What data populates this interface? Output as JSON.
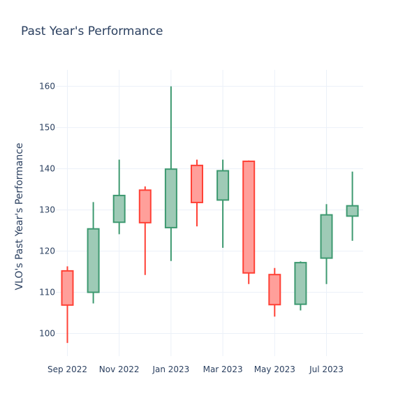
{
  "chart_data": {
    "type": "candlestick",
    "title": "Past Year's Performance",
    "ylabel": "VLO's Past Year's Performance",
    "xlabel": "",
    "ylim": [
      94.5,
      164
    ],
    "y_ticks": [
      100,
      110,
      120,
      130,
      140,
      150,
      160
    ],
    "x_ticks": [
      {
        "label": "Sep 2022",
        "at": "Sep 2022"
      },
      {
        "label": "Nov 2022",
        "at": "Nov 2022"
      },
      {
        "label": "Jan 2023",
        "at": "Jan 2023"
      },
      {
        "label": "Mar 2023",
        "at": "Mar 2023"
      },
      {
        "label": "May 2023",
        "at": "May 2023"
      },
      {
        "label": "Jul 2023",
        "at": "Jul 2023"
      }
    ],
    "grid": true,
    "colors": {
      "increasing": "#3d9970",
      "increasing_fill": "#9ecab6",
      "decreasing": "#ff4136",
      "decreasing_fill": "#ff9f9a"
    },
    "candles": [
      {
        "x": "Sep 2022",
        "open": 115.2,
        "high": 116.3,
        "low": 97.7,
        "close": 106.9
      },
      {
        "x": "Oct 2022",
        "open": 110.0,
        "high": 131.9,
        "low": 107.3,
        "close": 125.4
      },
      {
        "x": "Nov 2022",
        "open": 127.0,
        "high": 142.2,
        "low": 124.1,
        "close": 133.5
      },
      {
        "x": "Dec 2022",
        "open": 134.8,
        "high": 135.7,
        "low": 114.2,
        "close": 126.9
      },
      {
        "x": "Jan 2023",
        "open": 125.7,
        "high": 160.0,
        "low": 117.6,
        "close": 139.9
      },
      {
        "x": "Feb 2023",
        "open": 140.8,
        "high": 142.2,
        "low": 126.0,
        "close": 131.8
      },
      {
        "x": "Mar 2023",
        "open": 132.4,
        "high": 142.2,
        "low": 120.8,
        "close": 139.5
      },
      {
        "x": "Apr 2023",
        "open": 141.8,
        "high": 142.0,
        "low": 112.0,
        "close": 114.7
      },
      {
        "x": "May 2023",
        "open": 114.3,
        "high": 115.9,
        "low": 104.1,
        "close": 107.0
      },
      {
        "x": "Jun 2023",
        "open": 107.1,
        "high": 117.5,
        "low": 105.6,
        "close": 117.2
      },
      {
        "x": "Jul 2023",
        "open": 118.3,
        "high": 131.4,
        "low": 112.0,
        "close": 128.8
      },
      {
        "x": "Aug 2023",
        "open": 128.5,
        "high": 139.3,
        "low": 122.5,
        "close": 131.0
      }
    ]
  }
}
